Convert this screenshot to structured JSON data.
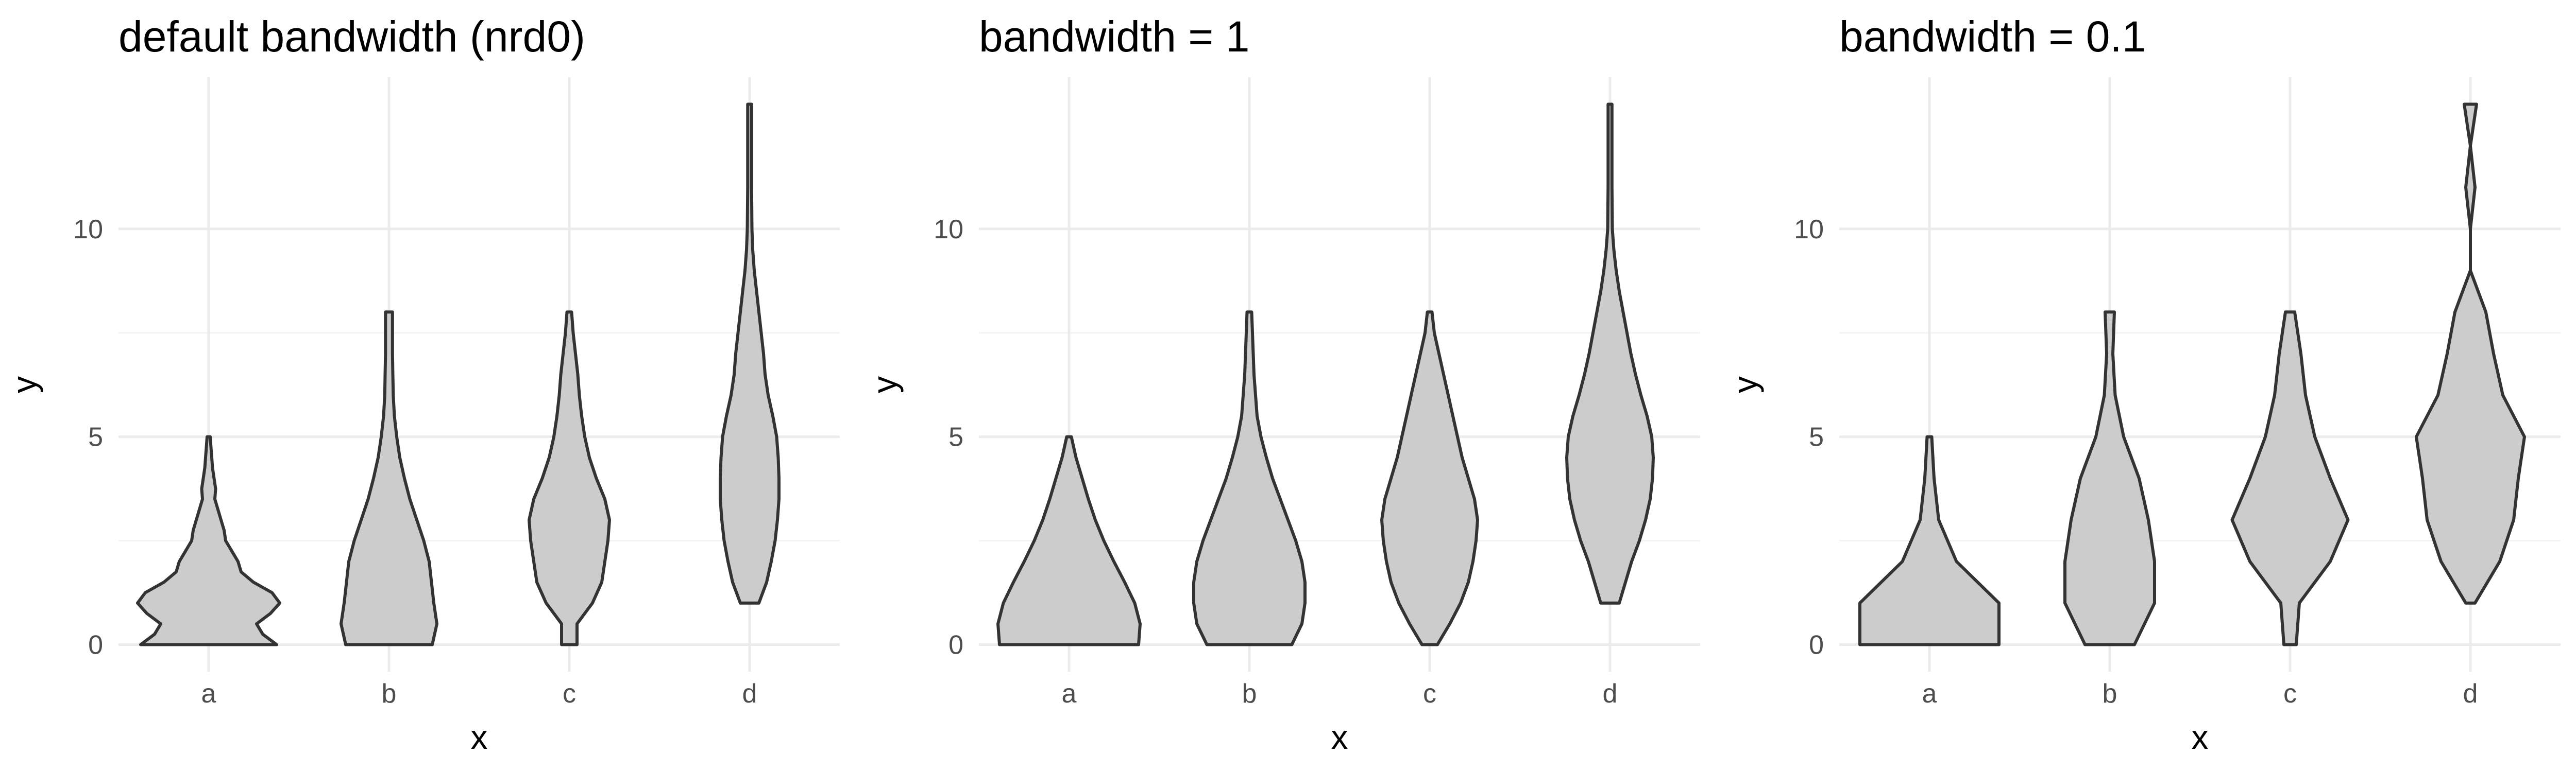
{
  "chart_data": [
    {
      "type": "violin",
      "title": "default bandwidth (nrd0)",
      "xlabel": "x",
      "ylabel": "y",
      "categories": [
        "a",
        "b",
        "c",
        "d"
      ],
      "ylim": [
        -0.65,
        13.65
      ],
      "y_ticks": [
        0,
        5,
        10
      ],
      "y_tick_labels": [
        "0",
        "5",
        "10"
      ],
      "grid": true,
      "violins": [
        {
          "category": "a",
          "y": [
            0,
            0.25,
            0.5,
            0.75,
            1,
            1.25,
            1.5,
            1.75,
            2,
            2.25,
            2.5,
            2.75,
            3,
            3.25,
            3.5,
            3.75,
            4,
            4.25,
            4.5,
            4.75,
            5
          ],
          "width": [
            0.88,
            0.7,
            0.62,
            0.8,
            0.92,
            0.82,
            0.58,
            0.42,
            0.38,
            0.3,
            0.22,
            0.2,
            0.16,
            0.12,
            0.08,
            0.09,
            0.07,
            0.05,
            0.04,
            0.03,
            0.02
          ]
        },
        {
          "category": "b",
          "y": [
            0,
            0.5,
            1,
            1.5,
            2,
            2.5,
            3,
            3.5,
            4,
            4.5,
            5,
            5.5,
            6,
            6.5,
            7,
            7.5,
            8
          ],
          "width": [
            0.56,
            0.62,
            0.58,
            0.55,
            0.52,
            0.45,
            0.36,
            0.27,
            0.2,
            0.14,
            0.1,
            0.07,
            0.055,
            0.05,
            0.045,
            0.045,
            0.045
          ]
        },
        {
          "category": "c",
          "y": [
            0,
            0.5,
            1,
            1.5,
            2,
            2.5,
            3,
            3.5,
            4,
            4.5,
            5,
            5.5,
            6,
            6.5,
            7,
            7.5,
            8
          ],
          "width": [
            0.1,
            0.1,
            0.3,
            0.42,
            0.46,
            0.5,
            0.52,
            0.46,
            0.35,
            0.26,
            0.2,
            0.16,
            0.13,
            0.11,
            0.08,
            0.05,
            0.03
          ]
        },
        {
          "category": "d",
          "y": [
            1,
            1.5,
            2,
            2.5,
            3,
            3.5,
            4,
            4.5,
            5,
            5.5,
            6,
            6.5,
            7,
            7.5,
            8,
            8.5,
            9,
            9.5,
            10,
            11,
            12,
            13
          ],
          "width": [
            0.12,
            0.22,
            0.28,
            0.33,
            0.36,
            0.38,
            0.38,
            0.37,
            0.35,
            0.3,
            0.24,
            0.2,
            0.18,
            0.15,
            0.12,
            0.09,
            0.06,
            0.04,
            0.03,
            0.025,
            0.025,
            0.025
          ]
        }
      ]
    },
    {
      "type": "violin",
      "title": "bandwidth = 1",
      "xlabel": "x",
      "ylabel": "y",
      "categories": [
        "a",
        "b",
        "c",
        "d"
      ],
      "ylim": [
        -0.65,
        13.65
      ],
      "y_ticks": [
        0,
        5,
        10
      ],
      "y_tick_labels": [
        "0",
        "5",
        "10"
      ],
      "grid": true,
      "violins": [
        {
          "category": "a",
          "y": [
            0,
            0.5,
            1,
            1.5,
            2,
            2.5,
            3,
            3.5,
            4,
            4.5,
            5
          ],
          "width": [
            0.9,
            0.92,
            0.85,
            0.72,
            0.58,
            0.45,
            0.34,
            0.25,
            0.17,
            0.09,
            0.03
          ]
        },
        {
          "category": "b",
          "y": [
            0,
            0.5,
            1,
            1.5,
            2,
            2.5,
            3,
            3.5,
            4,
            4.5,
            5,
            5.5,
            6,
            6.5,
            7,
            7.5,
            8
          ],
          "width": [
            0.55,
            0.68,
            0.72,
            0.72,
            0.68,
            0.6,
            0.5,
            0.4,
            0.3,
            0.22,
            0.15,
            0.1,
            0.08,
            0.06,
            0.05,
            0.04,
            0.03
          ]
        },
        {
          "category": "c",
          "y": [
            0,
            0.5,
            1,
            1.5,
            2,
            2.5,
            3,
            3.5,
            4,
            4.5,
            5,
            5.5,
            6,
            6.5,
            7,
            7.5,
            8
          ],
          "width": [
            0.1,
            0.26,
            0.4,
            0.5,
            0.56,
            0.6,
            0.62,
            0.58,
            0.5,
            0.42,
            0.36,
            0.3,
            0.24,
            0.18,
            0.12,
            0.06,
            0.03
          ]
        },
        {
          "category": "d",
          "y": [
            1,
            1.5,
            2,
            2.5,
            3,
            3.5,
            4,
            4.5,
            5,
            5.5,
            6,
            6.5,
            7,
            7.5,
            8,
            8.5,
            9,
            9.5,
            10,
            11,
            12,
            13
          ],
          "width": [
            0.12,
            0.2,
            0.28,
            0.38,
            0.46,
            0.52,
            0.55,
            0.56,
            0.54,
            0.48,
            0.4,
            0.33,
            0.27,
            0.22,
            0.17,
            0.12,
            0.08,
            0.05,
            0.03,
            0.025,
            0.025,
            0.025
          ]
        }
      ]
    },
    {
      "type": "violin",
      "title": "bandwidth = 0.1",
      "xlabel": "x",
      "ylabel": "y",
      "categories": [
        "a",
        "b",
        "c",
        "d"
      ],
      "ylim": [
        -0.65,
        13.65
      ],
      "y_ticks": [
        0,
        5,
        10
      ],
      "y_tick_labels": [
        "0",
        "5",
        "10"
      ],
      "grid": true,
      "violins": [
        {
          "category": "a",
          "y": [
            0,
            1,
            2,
            3,
            4,
            5
          ],
          "width": [
            0.9,
            0.9,
            0.35,
            0.12,
            0.06,
            0.03
          ]
        },
        {
          "category": "b",
          "y": [
            0,
            1,
            2,
            3,
            4,
            5,
            6,
            7,
            8
          ],
          "width": [
            0.32,
            0.58,
            0.58,
            0.5,
            0.38,
            0.18,
            0.07,
            0.04,
            0.06
          ]
        },
        {
          "category": "c",
          "y": [
            0,
            1,
            2,
            3,
            4,
            5,
            6,
            7,
            8
          ],
          "width": [
            0.08,
            0.12,
            0.52,
            0.75,
            0.52,
            0.32,
            0.2,
            0.14,
            0.06
          ]
        },
        {
          "category": "d",
          "y": [
            1,
            2,
            3,
            4,
            5,
            6,
            7,
            8,
            9,
            10,
            11,
            12,
            13
          ],
          "width": [
            0.06,
            0.38,
            0.56,
            0.62,
            0.7,
            0.42,
            0.3,
            0.2,
            0,
            0,
            0.06,
            0,
            0.08
          ]
        }
      ]
    }
  ]
}
